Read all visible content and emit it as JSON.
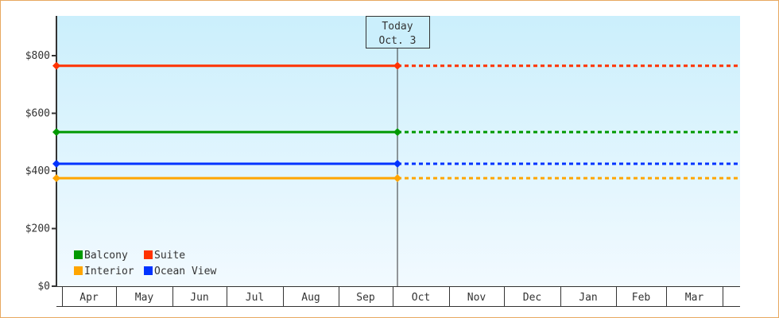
{
  "chart_data": {
    "type": "line",
    "title": "",
    "xlabel": "",
    "ylabel": "",
    "ylim": [
      0,
      940
    ],
    "yticks": [
      0,
      200,
      400,
      600,
      800
    ],
    "ytick_labels": [
      "$0",
      "$200",
      "$400",
      "$600",
      "$800"
    ],
    "categories": [
      "Apr",
      "May",
      "Jun",
      "Jul",
      "Aug",
      "Sep",
      "Oct",
      "Nov",
      "Dec",
      "Jan",
      "Feb",
      "Mar"
    ],
    "today_annotation": {
      "line1": "Today",
      "line2": "Oct. 3"
    },
    "grid": false,
    "legend_placement": "bottom-left",
    "series": [
      {
        "name": "Balcony",
        "color": "#009900",
        "value": 535
      },
      {
        "name": "Suite",
        "color": "#ff3300",
        "value": 765
      },
      {
        "name": "Interior",
        "color": "#ffa500",
        "value": 375
      },
      {
        "name": "Ocean View",
        "color": "#0033ff",
        "value": 425
      }
    ],
    "style": {
      "solid_before_today": true,
      "dotted_after_today": true,
      "background_gradient": [
        "#cbeffc",
        "#f2faff"
      ]
    }
  }
}
